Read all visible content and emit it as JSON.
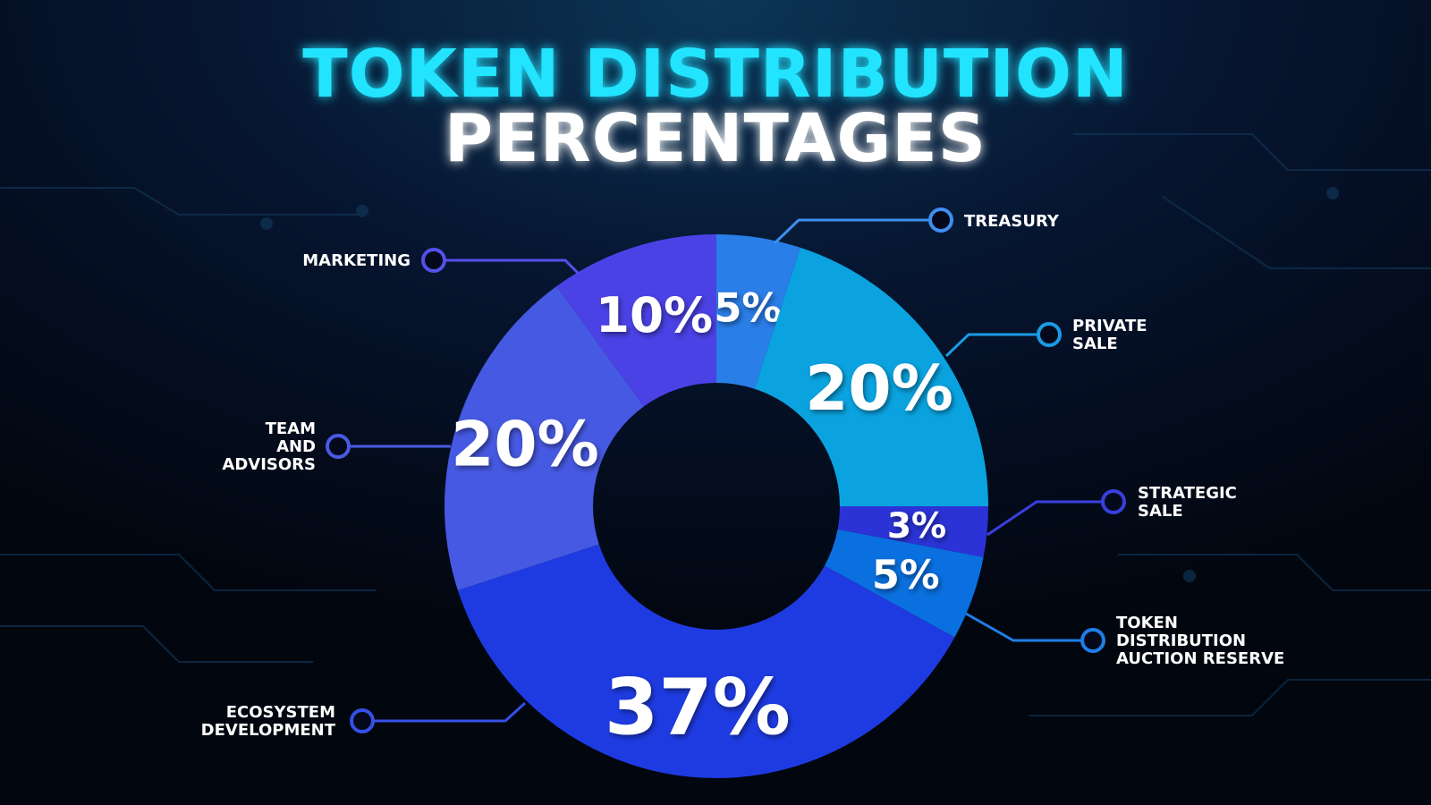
{
  "chart_data": {
    "type": "pie",
    "title": "TOKEN DISTRIBUTION",
    "subtitle": "PERCENTAGES",
    "donut": true,
    "categories": [
      "TREASURY",
      "PRIVATE\nSALE",
      "STRATEGIC\nSALE",
      "TOKEN\nDISTRIBUTION\nAUCTION RESERVE",
      "ECOSYSTEM\nDEVELOPMENT",
      "TEAM\nAND\nADVISORS",
      "MARKETING"
    ],
    "values": [
      5,
      20,
      3,
      5,
      37,
      20,
      10
    ],
    "value_labels": [
      "5%",
      "20%",
      "3%",
      "5%",
      "37%",
      "20%",
      "10%"
    ],
    "colors": [
      "#2a7ee8",
      "#0aa3e0",
      "#2b33d6",
      "#0a70e0",
      "#1e3be2",
      "#4659e2",
      "#4b42e6"
    ]
  }
}
